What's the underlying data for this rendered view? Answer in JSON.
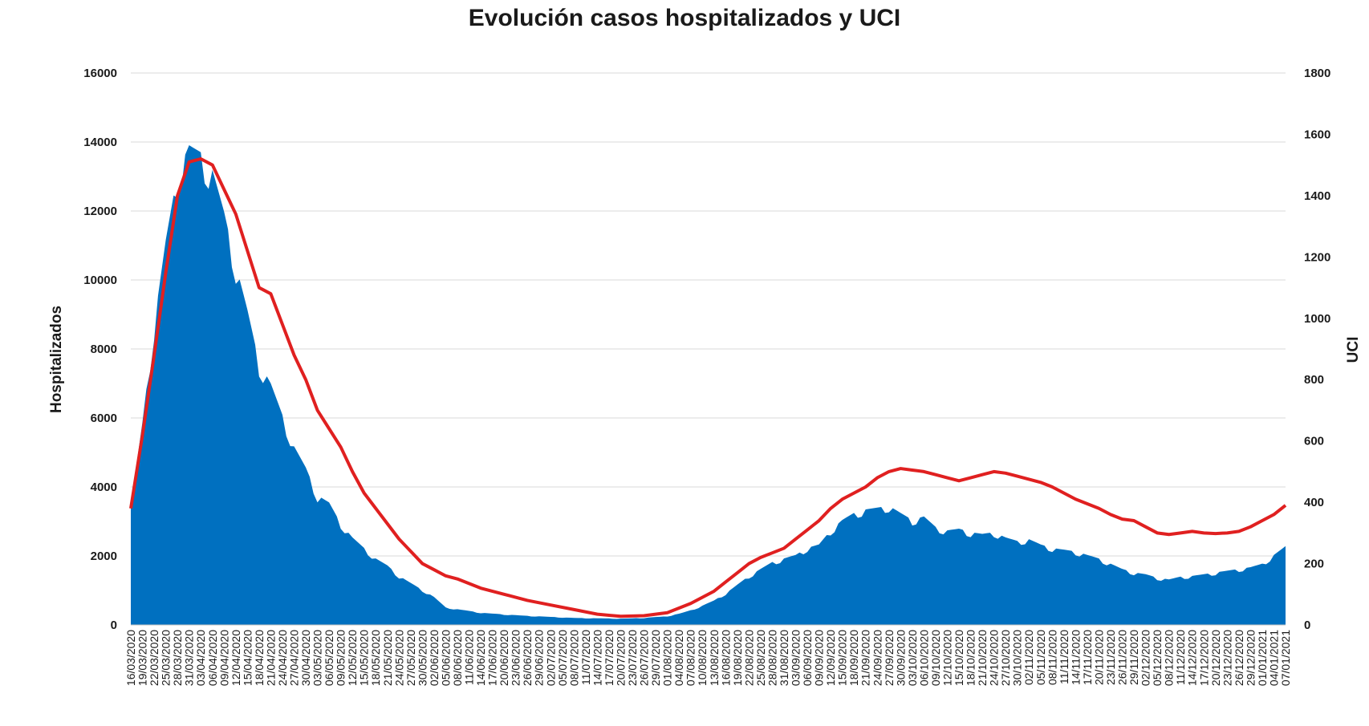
{
  "chart_data": {
    "type": "area",
    "title": "Evolución casos hospitalizados y UCI",
    "ylabel_left": "Hospitalizados",
    "ylabel_right": "UCI",
    "ylim_left": [
      0,
      16000
    ],
    "ylim_right": [
      0,
      1800
    ],
    "yticks_left": [
      "0",
      "2000",
      "4000",
      "6000",
      "8000",
      "10000",
      "12000",
      "14000",
      "16000"
    ],
    "yticks_right": [
      "0",
      "200",
      "400",
      "600",
      "800",
      "1000",
      "1200",
      "1400",
      "1600",
      "1800"
    ],
    "grid": true,
    "x_start": "16/03/2020",
    "x_end": "07/01/2021",
    "x_tick_step_days": 3,
    "series": [
      {
        "axis": "left",
        "style": "area",
        "color": "#0070c0",
        "points": [
          [
            "16/03/2020",
            3400
          ],
          [
            "19/03/2020",
            5800
          ],
          [
            "22/03/2020",
            8600
          ],
          [
            "25/03/2020",
            11000
          ],
          [
            "28/03/2020",
            12900
          ],
          [
            "31/03/2020",
            13700
          ],
          [
            "03/04/2020",
            13500
          ],
          [
            "06/04/2020",
            13000
          ],
          [
            "09/04/2020",
            11800
          ],
          [
            "12/04/2020",
            10300
          ],
          [
            "15/04/2020",
            9000
          ],
          [
            "18/04/2020",
            7500
          ],
          [
            "21/04/2020",
            6900
          ],
          [
            "24/04/2020",
            6000
          ],
          [
            "27/04/2020",
            5100
          ],
          [
            "30/04/2020",
            4500
          ],
          [
            "03/05/2020",
            3700
          ],
          [
            "06/05/2020",
            3500
          ],
          [
            "09/05/2020",
            2900
          ],
          [
            "12/05/2020",
            2500
          ],
          [
            "15/05/2020",
            2200
          ],
          [
            "18/05/2020",
            1900
          ],
          [
            "21/05/2020",
            1700
          ],
          [
            "24/05/2020",
            1400
          ],
          [
            "27/05/2020",
            1200
          ],
          [
            "30/05/2020",
            1000
          ],
          [
            "02/06/2020",
            800
          ],
          [
            "05/06/2020",
            500
          ],
          [
            "08/06/2020",
            450
          ],
          [
            "14/06/2020",
            350
          ],
          [
            "20/06/2020",
            300
          ],
          [
            "26/06/2020",
            260
          ],
          [
            "02/07/2020",
            230
          ],
          [
            "08/07/2020",
            200
          ],
          [
            "14/07/2020",
            190
          ],
          [
            "20/07/2020",
            180
          ],
          [
            "26/07/2020",
            200
          ],
          [
            "01/08/2020",
            250
          ],
          [
            "04/08/2020",
            320
          ],
          [
            "07/08/2020",
            420
          ],
          [
            "10/08/2020",
            550
          ],
          [
            "13/08/2020",
            700
          ],
          [
            "16/08/2020",
            900
          ],
          [
            "19/08/2020",
            1150
          ],
          [
            "22/08/2020",
            1400
          ],
          [
            "25/08/2020",
            1600
          ],
          [
            "28/08/2020",
            1800
          ],
          [
            "31/08/2020",
            1900
          ],
          [
            "03/09/2020",
            2000
          ],
          [
            "06/09/2020",
            2200
          ],
          [
            "09/09/2020",
            2300
          ],
          [
            "12/09/2020",
            2700
          ],
          [
            "15/09/2020",
            3000
          ],
          [
            "18/09/2020",
            3200
          ],
          [
            "21/09/2020",
            3300
          ],
          [
            "24/09/2020",
            3350
          ],
          [
            "27/09/2020",
            3400
          ],
          [
            "30/09/2020",
            3200
          ],
          [
            "03/10/2020",
            3000
          ],
          [
            "06/10/2020",
            3100
          ],
          [
            "09/10/2020",
            2800
          ],
          [
            "12/10/2020",
            2700
          ],
          [
            "15/10/2020",
            2750
          ],
          [
            "18/10/2020",
            2650
          ],
          [
            "21/10/2020",
            2600
          ],
          [
            "24/10/2020",
            2650
          ],
          [
            "27/10/2020",
            2500
          ],
          [
            "30/10/2020",
            2400
          ],
          [
            "02/11/2020",
            2450
          ],
          [
            "05/11/2020",
            2300
          ],
          [
            "08/11/2020",
            2200
          ],
          [
            "11/11/2020",
            2150
          ],
          [
            "14/11/2020",
            2100
          ],
          [
            "17/11/2020",
            2000
          ],
          [
            "20/11/2020",
            1900
          ],
          [
            "23/11/2020",
            1750
          ],
          [
            "26/11/2020",
            1600
          ],
          [
            "29/11/2020",
            1500
          ],
          [
            "02/12/2020",
            1450
          ],
          [
            "05/12/2020",
            1350
          ],
          [
            "08/12/2020",
            1300
          ],
          [
            "11/12/2020",
            1380
          ],
          [
            "14/12/2020",
            1400
          ],
          [
            "17/12/2020",
            1450
          ],
          [
            "20/12/2020",
            1500
          ],
          [
            "23/12/2020",
            1550
          ],
          [
            "26/12/2020",
            1600
          ],
          [
            "29/12/2020",
            1650
          ],
          [
            "01/01/2021",
            1750
          ],
          [
            "04/01/2021",
            2000
          ],
          [
            "07/01/2021",
            2250
          ]
        ]
      },
      {
        "axis": "right",
        "style": "line",
        "color": "#e02020",
        "points": [
          [
            "16/03/2020",
            380
          ],
          [
            "19/03/2020",
            620
          ],
          [
            "22/03/2020",
            880
          ],
          [
            "25/03/2020",
            1150
          ],
          [
            "28/03/2020",
            1400
          ],
          [
            "31/03/2020",
            1510
          ],
          [
            "03/04/2020",
            1520
          ],
          [
            "06/04/2020",
            1500
          ],
          [
            "09/04/2020",
            1420
          ],
          [
            "12/04/2020",
            1340
          ],
          [
            "15/04/2020",
            1220
          ],
          [
            "18/04/2020",
            1100
          ],
          [
            "21/04/2020",
            1080
          ],
          [
            "24/04/2020",
            980
          ],
          [
            "27/04/2020",
            880
          ],
          [
            "30/04/2020",
            800
          ],
          [
            "03/05/2020",
            700
          ],
          [
            "06/05/2020",
            640
          ],
          [
            "09/05/2020",
            580
          ],
          [
            "12/05/2020",
            500
          ],
          [
            "15/05/2020",
            430
          ],
          [
            "18/05/2020",
            380
          ],
          [
            "21/05/2020",
            330
          ],
          [
            "24/05/2020",
            280
          ],
          [
            "27/05/2020",
            240
          ],
          [
            "30/05/2020",
            200
          ],
          [
            "02/06/2020",
            180
          ],
          [
            "05/06/2020",
            160
          ],
          [
            "08/06/2020",
            150
          ],
          [
            "14/06/2020",
            120
          ],
          [
            "20/06/2020",
            100
          ],
          [
            "26/06/2020",
            80
          ],
          [
            "02/07/2020",
            65
          ],
          [
            "08/07/2020",
            50
          ],
          [
            "14/07/2020",
            35
          ],
          [
            "20/07/2020",
            28
          ],
          [
            "26/07/2020",
            30
          ],
          [
            "01/08/2020",
            40
          ],
          [
            "04/08/2020",
            55
          ],
          [
            "07/08/2020",
            70
          ],
          [
            "10/08/2020",
            90
          ],
          [
            "13/08/2020",
            110
          ],
          [
            "16/08/2020",
            140
          ],
          [
            "19/08/2020",
            170
          ],
          [
            "22/08/2020",
            200
          ],
          [
            "25/08/2020",
            220
          ],
          [
            "28/08/2020",
            235
          ],
          [
            "31/08/2020",
            250
          ],
          [
            "03/09/2020",
            280
          ],
          [
            "06/09/2020",
            310
          ],
          [
            "09/09/2020",
            340
          ],
          [
            "12/09/2020",
            380
          ],
          [
            "15/09/2020",
            410
          ],
          [
            "18/09/2020",
            430
          ],
          [
            "21/09/2020",
            450
          ],
          [
            "24/09/2020",
            480
          ],
          [
            "27/09/2020",
            500
          ],
          [
            "30/09/2020",
            510
          ],
          [
            "03/10/2020",
            505
          ],
          [
            "06/10/2020",
            500
          ],
          [
            "09/10/2020",
            490
          ],
          [
            "12/10/2020",
            480
          ],
          [
            "15/10/2020",
            470
          ],
          [
            "18/10/2020",
            480
          ],
          [
            "21/10/2020",
            490
          ],
          [
            "24/10/2020",
            500
          ],
          [
            "27/10/2020",
            495
          ],
          [
            "30/10/2020",
            485
          ],
          [
            "02/11/2020",
            475
          ],
          [
            "05/11/2020",
            465
          ],
          [
            "08/11/2020",
            450
          ],
          [
            "11/11/2020",
            430
          ],
          [
            "14/11/2020",
            410
          ],
          [
            "17/11/2020",
            395
          ],
          [
            "20/11/2020",
            380
          ],
          [
            "23/11/2020",
            360
          ],
          [
            "26/11/2020",
            345
          ],
          [
            "29/11/2020",
            340
          ],
          [
            "02/12/2020",
            320
          ],
          [
            "05/12/2020",
            300
          ],
          [
            "08/12/2020",
            295
          ],
          [
            "11/12/2020",
            300
          ],
          [
            "14/12/2020",
            305
          ],
          [
            "17/12/2020",
            300
          ],
          [
            "20/12/2020",
            298
          ],
          [
            "23/12/2020",
            300
          ],
          [
            "26/12/2020",
            305
          ],
          [
            "29/12/2020",
            320
          ],
          [
            "01/01/2021",
            340
          ],
          [
            "04/01/2021",
            360
          ],
          [
            "07/01/2021",
            390
          ]
        ]
      }
    ]
  }
}
